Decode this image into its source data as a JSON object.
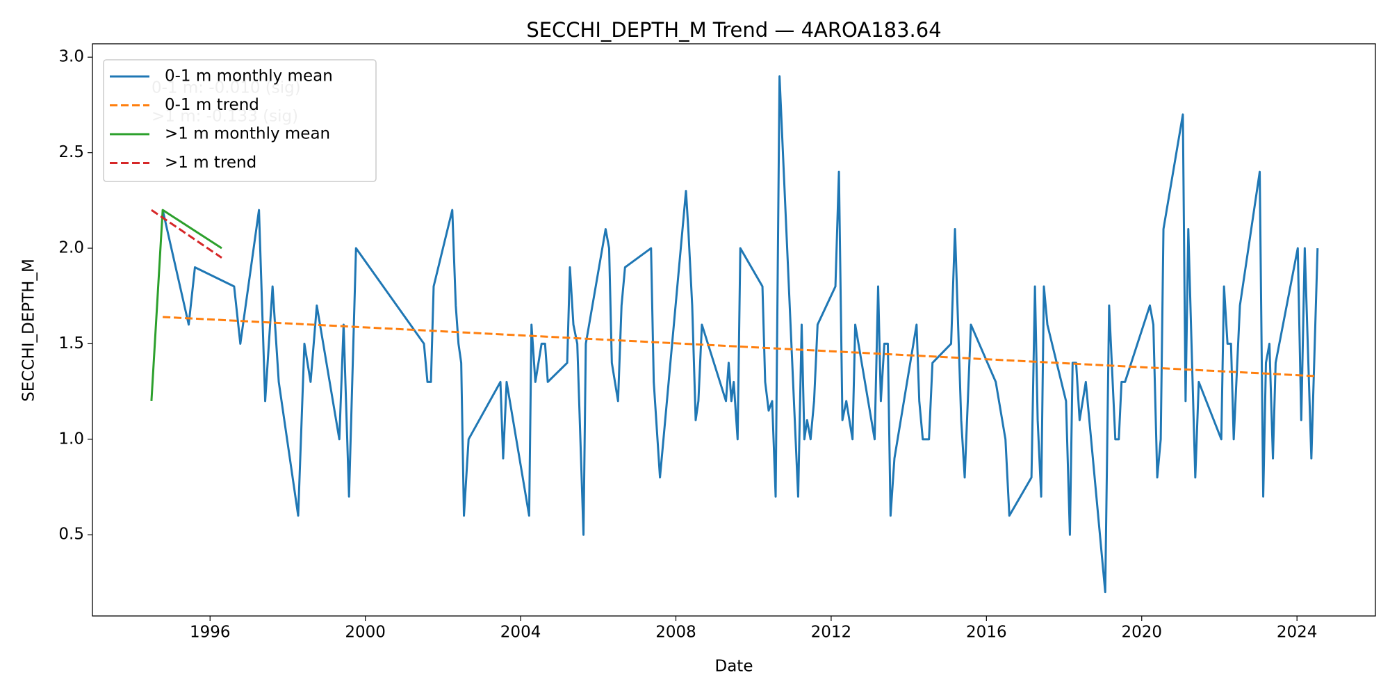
{
  "chart_data": {
    "type": "line",
    "title": "SECCHI_DEPTH_M Trend — 4AROA183.64",
    "x_label": "Date",
    "y_label": "SECCHI_DEPTH_M",
    "xlim": [
      1992.97,
      2026.02
    ],
    "ylim": [
      0.075,
      3.07
    ],
    "xticks": [
      1996,
      2000,
      2004,
      2008,
      2012,
      2016,
      2020,
      2024
    ],
    "yticks": [
      {
        "value": 0.5,
        "label": "0.5"
      },
      {
        "value": 1,
        "label": "1.0"
      },
      {
        "value": 1.5,
        "label": "1.5"
      },
      {
        "value": 2,
        "label": "2.0"
      },
      {
        "value": 2.5,
        "label": "2.5"
      },
      {
        "value": 3,
        "label": "3.0"
      }
    ],
    "legend": "upper left",
    "annotations": [
      "0-1 m: -0.010 (sig)",
      ">1 m: -0.133 (sig)"
    ],
    "series": [
      {
        "name": "0-1 m monthly mean",
        "color": "#1f77b4",
        "linestyle": "solid",
        "x": [
          1994.78,
          1995.45,
          1995.61,
          1996.62,
          1996.78,
          1997.26,
          1997.42,
          1997.61,
          1997.77,
          1998.27,
          1998.43,
          1998.59,
          1998.75,
          1999.33,
          1999.44,
          1999.58,
          1999.76,
          2001.51,
          2001.6,
          2001.69,
          2001.76,
          2002.24,
          2002.33,
          2002.4,
          2002.47,
          2002.54,
          2002.66,
          2003.48,
          2003.55,
          2003.64,
          2004.22,
          2004.28,
          2004.38,
          2004.54,
          2004.63,
          2004.7,
          2005.2,
          2005.27,
          2005.36,
          2005.46,
          2005.62,
          2005.68,
          2006.19,
          2006.28,
          2006.35,
          2006.51,
          2006.6,
          2006.69,
          2007.36,
          2007.43,
          2007.59,
          2007.68,
          2008.26,
          2008.32,
          2008.42,
          2008.51,
          2008.58,
          2008.67,
          2009.29,
          2009.36,
          2009.43,
          2009.49,
          2009.59,
          2009.66,
          2010.23,
          2010.3,
          2010.39,
          2010.48,
          2010.57,
          2010.67,
          2011.15,
          2011.24,
          2011.31,
          2011.38,
          2011.47,
          2011.56,
          2011.65,
          2012.11,
          2012.2,
          2012.29,
          2012.39,
          2012.55,
          2012.62,
          2013.12,
          2013.21,
          2013.28,
          2013.37,
          2013.46,
          2013.53,
          2013.63,
          2014.2,
          2014.27,
          2014.36,
          2014.52,
          2014.61,
          2015.09,
          2015.19,
          2015.35,
          2015.44,
          2015.6,
          2016.24,
          2016.49,
          2016.59,
          2017.16,
          2017.25,
          2017.32,
          2017.41,
          2017.48,
          2017.57,
          2018.05,
          2018.15,
          2018.22,
          2018.31,
          2018.4,
          2018.56,
          2019.06,
          2019.16,
          2019.32,
          2019.41,
          2019.48,
          2019.57,
          2020.21,
          2020.3,
          2020.4,
          2020.49,
          2020.56,
          2021.06,
          2021.13,
          2021.2,
          2021.38,
          2021.47,
          2022.05,
          2022.12,
          2022.21,
          2022.3,
          2022.37,
          2022.53,
          2023.04,
          2023.13,
          2023.2,
          2023.29,
          2023.38,
          2023.45,
          2024.02,
          2024.11,
          2024.2,
          2024.37,
          2024.53
        ],
        "values": [
          2.2,
          1.6,
          1.9,
          1.8,
          1.5,
          2.2,
          1.2,
          1.8,
          1.3,
          0.6,
          1.5,
          1.3,
          1.7,
          1.0,
          1.6,
          0.7,
          2.0,
          1.5,
          1.3,
          1.3,
          1.8,
          2.2,
          1.7,
          1.5,
          1.4,
          0.6,
          1.0,
          1.3,
          0.9,
          1.3,
          0.6,
          1.6,
          1.3,
          1.5,
          1.5,
          1.3,
          1.4,
          1.9,
          1.6,
          1.5,
          0.5,
          1.5,
          2.1,
          2.0,
          1.4,
          1.2,
          1.7,
          1.9,
          2.0,
          1.3,
          0.8,
          1.0,
          2.3,
          2.1,
          1.7,
          1.1,
          1.2,
          1.6,
          1.2,
          1.4,
          1.2,
          1.3,
          1.0,
          2.0,
          1.8,
          1.3,
          1.15,
          1.2,
          0.7,
          2.9,
          0.7,
          1.6,
          1.0,
          1.1,
          1.0,
          1.2,
          1.6,
          1.8,
          2.4,
          1.1,
          1.2,
          1.0,
          1.6,
          1.0,
          1.8,
          1.2,
          1.5,
          1.5,
          0.6,
          0.9,
          1.6,
          1.2,
          1.0,
          1.0,
          1.4,
          1.5,
          2.1,
          1.1,
          0.8,
          1.6,
          1.3,
          1.0,
          0.6,
          0.8,
          1.8,
          1.1,
          0.7,
          1.8,
          1.6,
          1.2,
          0.5,
          1.4,
          1.4,
          1.1,
          1.3,
          0.2,
          1.7,
          1.0,
          1.0,
          1.3,
          1.3,
          1.7,
          1.6,
          0.8,
          1.0,
          2.1,
          2.7,
          1.2,
          2.1,
          0.8,
          1.3,
          1.0,
          1.8,
          1.5,
          1.5,
          1.0,
          1.7,
          2.4,
          0.7,
          1.4,
          1.5,
          0.9,
          1.4,
          2.0,
          1.1,
          2.0,
          0.9,
          2.0
        ]
      },
      {
        "name": "0-1 m trend",
        "color": "#ff7f0e",
        "linestyle": "dashed",
        "x": [
          1994.78,
          2024.53
        ],
        "values": [
          1.64,
          1.33
        ]
      },
      {
        "name": ">1 m monthly mean",
        "color": "#2ca02c",
        "linestyle": "solid",
        "x": [
          1994.49,
          1994.78,
          1996.3
        ],
        "values": [
          1.2,
          2.2,
          2.0
        ]
      },
      {
        "name": ">1 m trend",
        "color": "#d62728",
        "linestyle": "dashed",
        "x": [
          1994.49,
          1996.3
        ],
        "values": [
          2.2,
          1.95
        ]
      }
    ]
  }
}
